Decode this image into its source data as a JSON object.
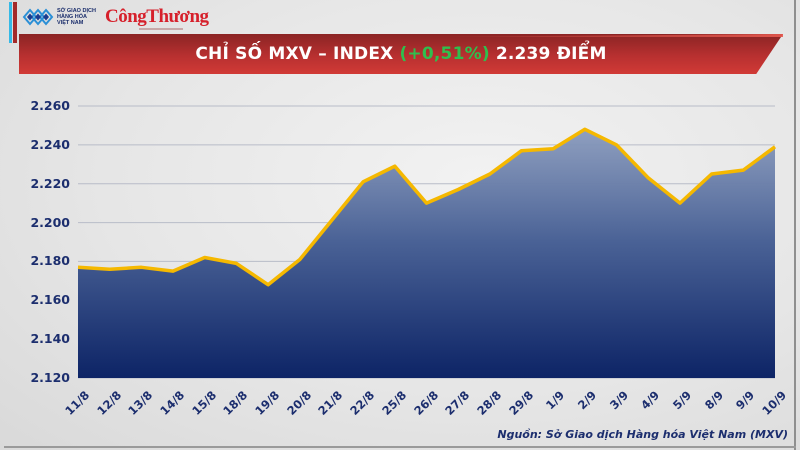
{
  "header": {
    "logo_mxv_lines": [
      "SỞ GIAO DỊCH",
      "HÀNG HÓA",
      "VIỆT NAM"
    ],
    "logo_brand": "CôngThương"
  },
  "banner": {
    "title_prefix": "CHỈ SỐ MXV – INDEX",
    "change_pct": "(+0,51%)",
    "title_suffix": "2.239 ĐIỂM",
    "change_color": "#2fbf4e",
    "banner_color": "#b83030"
  },
  "source": "Nguồn: Sở Giao dịch Hàng hóa Việt Nam (MXV)",
  "colors": {
    "line": "#f5b800",
    "area_top": "#8a9bbd",
    "area_bottom": "#0d2466",
    "axis_text": "#1c2e6e",
    "gridline": "#b8bcc8"
  },
  "chart_data": {
    "type": "area",
    "title": "CHỈ SỐ MXV – INDEX (+0,51%) 2.239 ĐIỂM",
    "xlabel": "",
    "ylabel": "",
    "ylim": [
      2.12,
      2.26
    ],
    "yticks": [
      "2.120",
      "2.140",
      "2.160",
      "2.180",
      "2.200",
      "2.220",
      "2.240",
      "2.260"
    ],
    "grid": true,
    "legend": "none",
    "categories": [
      "11/8",
      "12/8",
      "13/8",
      "14/8",
      "15/8",
      "18/8",
      "19/8",
      "20/8",
      "21/8",
      "22/8",
      "25/8",
      "26/8",
      "27/8",
      "28/8",
      "29/8",
      "1/9",
      "2/9",
      "3/9",
      "4/9",
      "5/9",
      "8/9",
      "9/9",
      "10/9"
    ],
    "series": [
      {
        "name": "MXV-Index",
        "values": [
          2177,
          2176,
          2177,
          2175,
          2182,
          2179,
          2168,
          2181,
          2201,
          2221,
          2229,
          2210,
          2217,
          2225,
          2237,
          2238,
          2248,
          2240,
          2223,
          2210,
          2225,
          2227,
          2239
        ]
      }
    ],
    "annotations": [
      "Nguồn: Sở Giao dịch Hàng hóa Việt Nam (MXV)"
    ]
  }
}
